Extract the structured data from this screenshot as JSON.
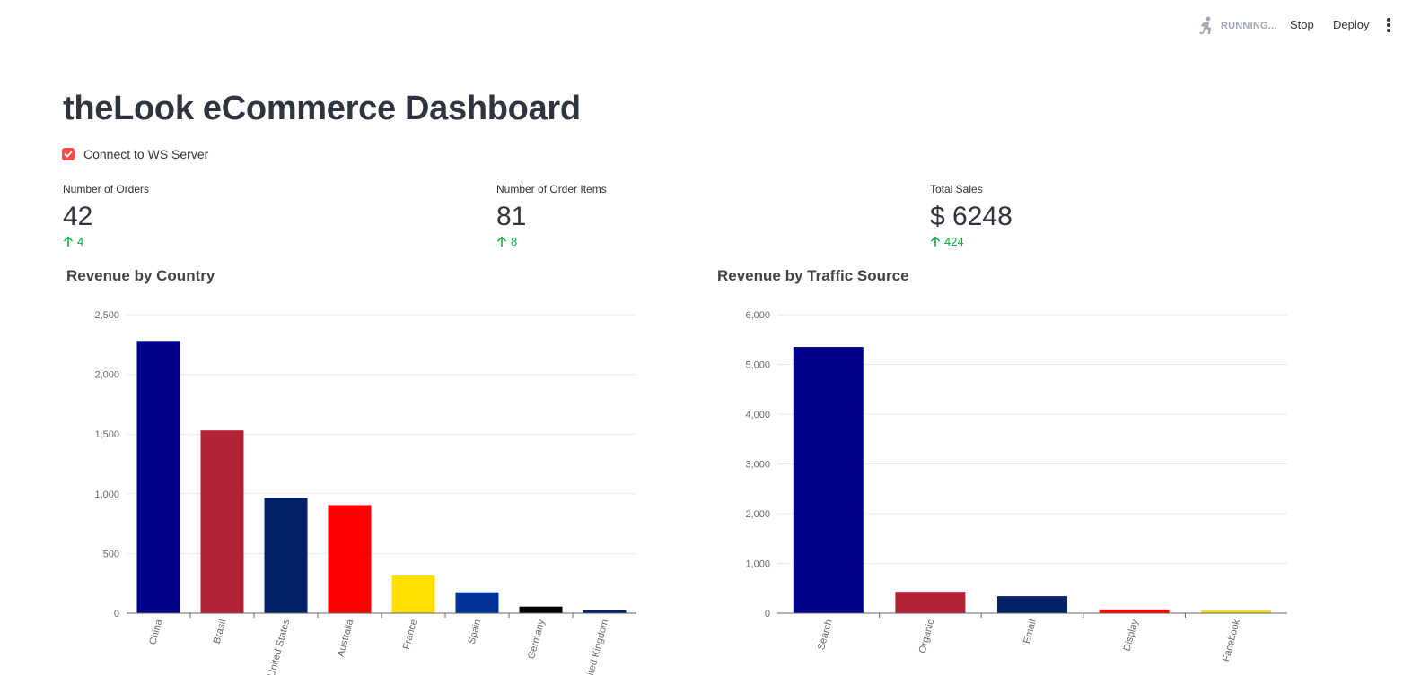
{
  "header": {
    "status": "RUNNING...",
    "stop_label": "Stop",
    "deploy_label": "Deploy"
  },
  "page": {
    "title": "theLook eCommerce Dashboard",
    "checkbox_label": "Connect to WS Server",
    "checkbox_checked": true
  },
  "metrics": [
    {
      "label": "Number of Orders",
      "value": "42",
      "delta": "4"
    },
    {
      "label": "Number of Order Items",
      "value": "81",
      "delta": "8"
    },
    {
      "label": "Total Sales",
      "value": "$ 6248",
      "delta": "424"
    }
  ],
  "colors": {
    "accent": "#ff4b4b",
    "delta_positive": "#09ab3b",
    "grid": "#e9e9ec",
    "axis_text": "#6b6b6b"
  },
  "chart_data": [
    {
      "type": "bar",
      "title": "Revenue by Country",
      "categories": [
        "China",
        "Brasil",
        "United States",
        "Australia",
        "France",
        "Spain",
        "Germany",
        "United Kingdom"
      ],
      "values": [
        2280,
        1530,
        965,
        905,
        315,
        175,
        55,
        25
      ],
      "colors": [
        "#00008b",
        "#b22234",
        "#012169",
        "#ff0000",
        "#ffde00",
        "#003399",
        "#000000",
        "#012169"
      ],
      "yticks": [
        0,
        500,
        1000,
        1500,
        2000,
        2500
      ],
      "ytick_labels": [
        "0",
        "500",
        "1,000",
        "1,500",
        "2,000",
        "2,500"
      ],
      "ylim": [
        0,
        2500
      ]
    },
    {
      "type": "bar",
      "title": "Revenue by Traffic Source",
      "categories": [
        "Search",
        "Organic",
        "Email",
        "Display",
        "Facebook"
      ],
      "values": [
        5350,
        430,
        340,
        75,
        55
      ],
      "colors": [
        "#00008b",
        "#b22234",
        "#012169",
        "#ff0000",
        "#ffde00"
      ],
      "yticks": [
        0,
        1000,
        2000,
        3000,
        4000,
        5000,
        6000
      ],
      "ytick_labels": [
        "0",
        "1,000",
        "2,000",
        "3,000",
        "4,000",
        "5,000",
        "6,000"
      ],
      "ylim": [
        0,
        6000
      ]
    }
  ]
}
